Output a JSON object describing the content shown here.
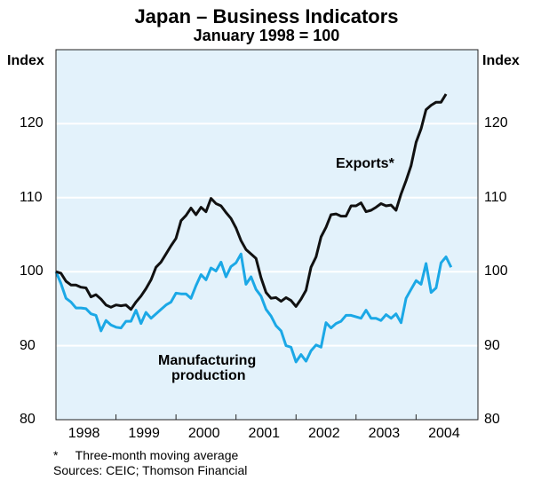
{
  "chart_data": {
    "type": "line",
    "title": "Japan – Business Indicators",
    "subtitle": "January 1998 = 100",
    "ylabel_left": "Index",
    "ylabel_right": "Index",
    "ylim": [
      80,
      130
    ],
    "yticks": [
      80,
      90,
      100,
      110,
      120
    ],
    "x_start": "1998-01",
    "x_frequency": "monthly",
    "xticks": [
      "1998",
      "1999",
      "2000",
      "2001",
      "2002",
      "2003",
      "2004"
    ],
    "grid": true,
    "series": [
      {
        "name": "Exports*",
        "color": "#111111",
        "values": [
          100,
          99.8,
          98.7,
          98.2,
          98.2,
          97.9,
          97.8,
          96.6,
          96.9,
          96.3,
          95.5,
          95.2,
          95.5,
          95.4,
          95.5,
          94.9,
          95.9,
          96.7,
          97.7,
          98.9,
          100.6,
          101.3,
          102.4,
          103.5,
          104.5,
          106.9,
          107.6,
          108.6,
          107.7,
          108.7,
          108.1,
          109.9,
          109.2,
          108.9,
          108,
          107.2,
          105.9,
          104.2,
          103,
          102.4,
          101.8,
          99.2,
          97.2,
          96.4,
          96.5,
          96,
          96.5,
          96.1,
          95.3,
          96.3,
          97.5,
          100.6,
          102,
          104.7,
          106,
          107.7,
          107.8,
          107.5,
          107.5,
          108.9,
          108.9,
          109.3,
          108.1,
          108.3,
          108.7,
          109.2,
          108.9,
          109,
          108.3,
          110.5,
          112.3,
          114.3,
          117.5,
          119.3,
          121.9,
          122.5,
          122.9,
          122.9,
          124
        ]
      },
      {
        "name": "Manufacturing production",
        "color": "#1ba8e6",
        "values": [
          100,
          98.4,
          96.4,
          95.9,
          95.1,
          95.1,
          95,
          94.3,
          94.1,
          92,
          93.4,
          92.8,
          92.5,
          92.4,
          93.3,
          93.3,
          94.8,
          93,
          94.5,
          93.7,
          94.3,
          94.9,
          95.5,
          95.9,
          97.1,
          97,
          97,
          96.4,
          98.1,
          99.6,
          98.9,
          100.5,
          100.1,
          101.3,
          99.3,
          100.7,
          101.2,
          102.4,
          98.3,
          99.3,
          97.6,
          96.7,
          94.9,
          94,
          92.7,
          92,
          90,
          89.8,
          87.8,
          88.8,
          87.9,
          89.3,
          90.1,
          89.8,
          93.1,
          92.4,
          93,
          93.3,
          94.1,
          94.1,
          93.9,
          93.7,
          94.8,
          93.7,
          93.7,
          93.4,
          94.2,
          93.7,
          94.3,
          93.1,
          96.4,
          97.6,
          98.8,
          98.3,
          101.1,
          97.2,
          97.8,
          101.2,
          102,
          100.6
        ]
      }
    ],
    "annotations": [
      "Exports*",
      "Manufacturing",
      "production"
    ],
    "footnote": "*     Three-month moving average",
    "sources": "Sources: CEIC; Thomson Financial"
  }
}
